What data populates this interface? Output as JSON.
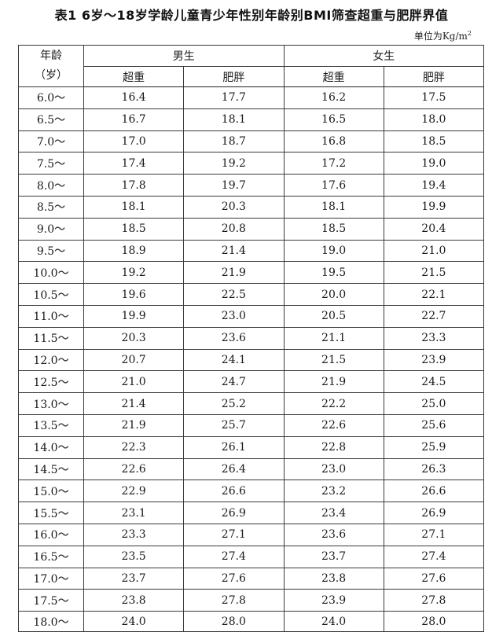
{
  "title": "表1 6岁～18岁学龄儿童青少年性别年龄别BMI筛查超重与肥胖界值",
  "unit_prefix": "单位为Kg/m",
  "unit_sup": "2",
  "header": {
    "age_line1": "年龄",
    "age_line2": "（岁）",
    "male": "男生",
    "female": "女生",
    "overweight": "超重",
    "obese": "肥胖"
  },
  "rows": [
    {
      "age": "6.0～",
      "m_over": "16.4",
      "m_obese": "17.7",
      "f_over": "16.2",
      "f_obese": "17.5"
    },
    {
      "age": "6.5～",
      "m_over": "16.7",
      "m_obese": "18.1",
      "f_over": "16.5",
      "f_obese": "18.0"
    },
    {
      "age": "7.0～",
      "m_over": "17.0",
      "m_obese": "18.7",
      "f_over": "16.8",
      "f_obese": "18.5"
    },
    {
      "age": "7.5～",
      "m_over": "17.4",
      "m_obese": "19.2",
      "f_over": "17.2",
      "f_obese": "19.0"
    },
    {
      "age": "8.0～",
      "m_over": "17.8",
      "m_obese": "19.7",
      "f_over": "17.6",
      "f_obese": "19.4"
    },
    {
      "age": "8.5～",
      "m_over": "18.1",
      "m_obese": "20.3",
      "f_over": "18.1",
      "f_obese": "19.9"
    },
    {
      "age": "9.0～",
      "m_over": "18.5",
      "m_obese": "20.8",
      "f_over": "18.5",
      "f_obese": "20.4"
    },
    {
      "age": "9.5～",
      "m_over": "18.9",
      "m_obese": "21.4",
      "f_over": "19.0",
      "f_obese": "21.0"
    },
    {
      "age": "10.0～",
      "m_over": "19.2",
      "m_obese": "21.9",
      "f_over": "19.5",
      "f_obese": "21.5"
    },
    {
      "age": "10.5～",
      "m_over": "19.6",
      "m_obese": "22.5",
      "f_over": "20.0",
      "f_obese": "22.1"
    },
    {
      "age": "11.0～",
      "m_over": "19.9",
      "m_obese": "23.0",
      "f_over": "20.5",
      "f_obese": "22.7"
    },
    {
      "age": "11.5～",
      "m_over": "20.3",
      "m_obese": "23.6",
      "f_over": "21.1",
      "f_obese": "23.3"
    },
    {
      "age": "12.0～",
      "m_over": "20.7",
      "m_obese": "24.1",
      "f_over": "21.5",
      "f_obese": "23.9"
    },
    {
      "age": "12.5～",
      "m_over": "21.0",
      "m_obese": "24.7",
      "f_over": "21.9",
      "f_obese": "24.5"
    },
    {
      "age": "13.0～",
      "m_over": "21.4",
      "m_obese": "25.2",
      "f_over": "22.2",
      "f_obese": "25.0"
    },
    {
      "age": "13.5～",
      "m_over": "21.9",
      "m_obese": "25.7",
      "f_over": "22.6",
      "f_obese": "25.6"
    },
    {
      "age": "14.0～",
      "m_over": "22.3",
      "m_obese": "26.1",
      "f_over": "22.8",
      "f_obese": "25.9"
    },
    {
      "age": "14.5～",
      "m_over": "22.6",
      "m_obese": "26.4",
      "f_over": "23.0",
      "f_obese": "26.3"
    },
    {
      "age": "15.0～",
      "m_over": "22.9",
      "m_obese": "26.6",
      "f_over": "23.2",
      "f_obese": "26.6"
    },
    {
      "age": "15.5～",
      "m_over": "23.1",
      "m_obese": "26.9",
      "f_over": "23.4",
      "f_obese": "26.9"
    },
    {
      "age": "16.0～",
      "m_over": "23.3",
      "m_obese": "27.1",
      "f_over": "23.6",
      "f_obese": "27.1"
    },
    {
      "age": "16.5～",
      "m_over": "23.5",
      "m_obese": "27.4",
      "f_over": "23.7",
      "f_obese": "27.4"
    },
    {
      "age": "17.0～",
      "m_over": "23.7",
      "m_obese": "27.6",
      "f_over": "23.8",
      "f_obese": "27.6"
    },
    {
      "age": "17.5～",
      "m_over": "23.8",
      "m_obese": "27.8",
      "f_over": "23.9",
      "f_obese": "27.8"
    },
    {
      "age": "18.0～",
      "m_over": "24.0",
      "m_obese": "28.0",
      "f_over": "24.0",
      "f_obese": "28.0"
    }
  ]
}
